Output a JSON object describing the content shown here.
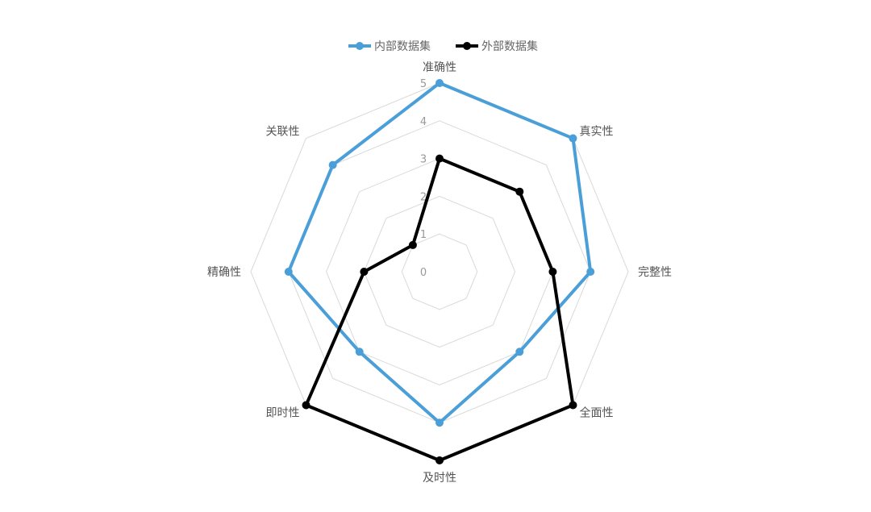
{
  "chart_data": {
    "type": "radar",
    "categories": [
      "准确性",
      "真实性",
      "完整性",
      "全面性",
      "及时性",
      "即时性",
      "精确性",
      "关联性"
    ],
    "series": [
      {
        "name": "内部数据集",
        "color": "#4a9fd8",
        "values": [
          5,
          5,
          4,
          3,
          4,
          3,
          4,
          4
        ]
      },
      {
        "name": "外部数据集",
        "color": "#000000",
        "values": [
          3,
          3,
          3,
          5,
          5,
          5,
          2,
          1
        ]
      }
    ],
    "rlim": [
      0,
      5
    ],
    "ticks": [
      "0",
      "1",
      "2",
      "3",
      "4",
      "5"
    ],
    "grid": true,
    "grid_color": "#d9d9d9",
    "legend": "top"
  }
}
